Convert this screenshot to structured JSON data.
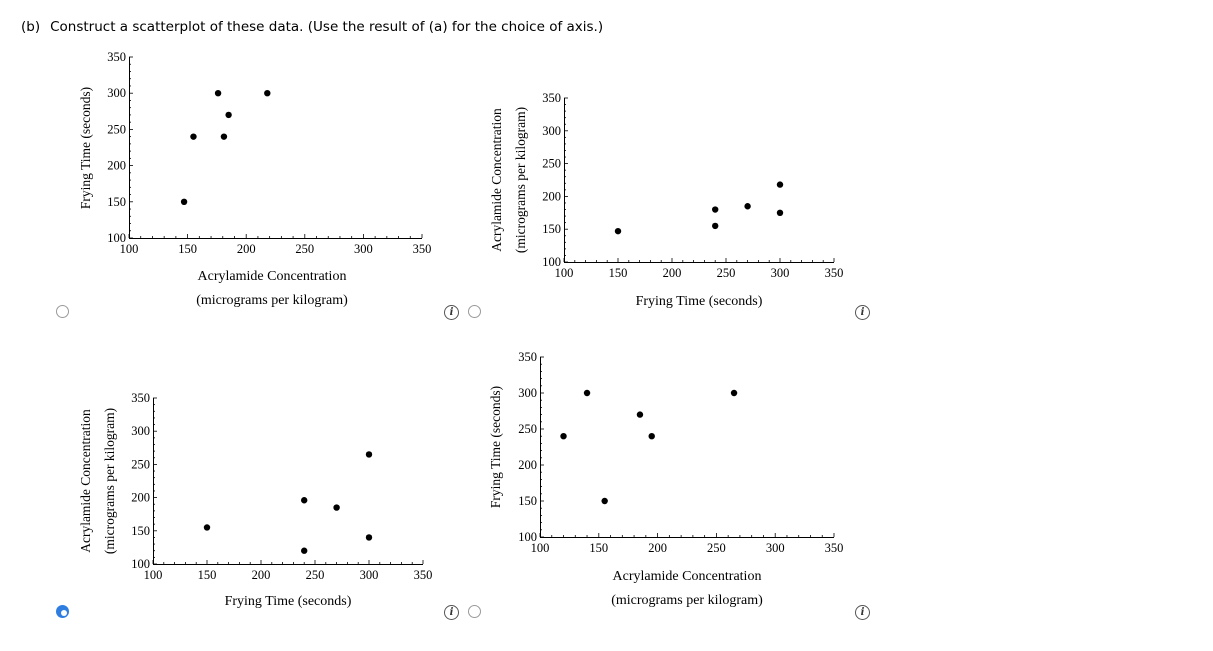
{
  "question": {
    "part": "(b)",
    "text": "Construct a scatterplot of these data. (Use the result of (a) for the choice of axis.)"
  },
  "info_icon_label": "i",
  "options": [
    {
      "selected": false
    },
    {
      "selected": false
    },
    {
      "selected": true
    },
    {
      "selected": false
    }
  ],
  "chart_data": [
    {
      "type": "scatter",
      "xlabel": [
        "Acrylamide Concentration",
        "(micrograms per kilogram)"
      ],
      "ylabel": [
        "Frying Time (seconds)"
      ],
      "xlim": [
        100,
        350
      ],
      "ylim": [
        100,
        350
      ],
      "xticks": [
        "100",
        "150",
        "200",
        "250",
        "300",
        "350"
      ],
      "yticks": [
        "100",
        "150",
        "200",
        "250",
        "300",
        "350"
      ],
      "points": [
        [
          147,
          150
        ],
        [
          155,
          240
        ],
        [
          176,
          300
        ],
        [
          181,
          240
        ],
        [
          185,
          270
        ],
        [
          218,
          300
        ]
      ]
    },
    {
      "type": "scatter",
      "xlabel": [
        "Frying Time (seconds)"
      ],
      "ylabel": [
        "Acrylamide Concentration",
        "(micrograms per kilogram)"
      ],
      "xlim": [
        100,
        350
      ],
      "ylim": [
        100,
        350
      ],
      "xticks": [
        "100",
        "150",
        "200",
        "250",
        "300",
        "350"
      ],
      "yticks": [
        "100",
        "150",
        "200",
        "250",
        "300",
        "350"
      ],
      "points": [
        [
          150,
          147
        ],
        [
          240,
          155
        ],
        [
          240,
          180
        ],
        [
          270,
          185
        ],
        [
          300,
          175
        ],
        [
          300,
          218
        ]
      ]
    },
    {
      "type": "scatter",
      "xlabel": [
        "Frying Time (seconds)"
      ],
      "ylabel": [
        "Acrylamide Concentration",
        "(micrograms per kilogram)"
      ],
      "xlim": [
        100,
        350
      ],
      "ylim": [
        100,
        350
      ],
      "xticks": [
        "100",
        "150",
        "200",
        "250",
        "300",
        "350"
      ],
      "yticks": [
        "100",
        "150",
        "200",
        "250",
        "300",
        "350"
      ],
      "points": [
        [
          150,
          155
        ],
        [
          240,
          120
        ],
        [
          240,
          196
        ],
        [
          270,
          185
        ],
        [
          300,
          140
        ],
        [
          300,
          265
        ]
      ]
    },
    {
      "type": "scatter",
      "xlabel": [
        "Acrylamide Concentration",
        "(micrograms per kilogram)"
      ],
      "ylabel": [
        "Frying Time (seconds)"
      ],
      "xlim": [
        100,
        350
      ],
      "ylim": [
        100,
        350
      ],
      "xticks": [
        "100",
        "150",
        "200",
        "250",
        "300",
        "350"
      ],
      "yticks": [
        "100",
        "150",
        "200",
        "250",
        "300",
        "350"
      ],
      "points": [
        [
          120,
          240
        ],
        [
          140,
          300
        ],
        [
          155,
          150
        ],
        [
          185,
          270
        ],
        [
          195,
          240
        ],
        [
          265,
          300
        ]
      ]
    }
  ]
}
